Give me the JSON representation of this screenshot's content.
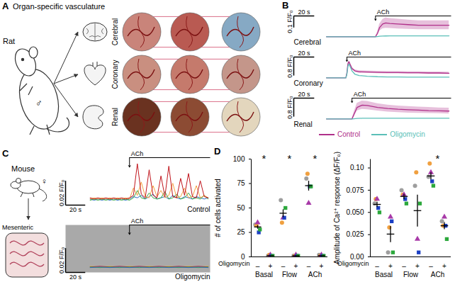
{
  "panels": {
    "A": {
      "letter": "A",
      "title": "Organ-specific vasculature",
      "animal": "Rat",
      "sex": "♂",
      "organs": [
        "Cerebral",
        "Coronary",
        "Renal"
      ]
    },
    "B": {
      "letter": "B"
    },
    "C": {
      "letter": "C",
      "animal": "Mouse",
      "sex": "♀",
      "organ": "Mesenteric"
    },
    "D": {
      "letter": "D"
    }
  },
  "chart_data": [
    {
      "type": "line",
      "title": "Cerebral",
      "tick_labels": false,
      "x": [
        0,
        10,
        20,
        30,
        40,
        46,
        48,
        50,
        52,
        55,
        58,
        62,
        70,
        80,
        90,
        100,
        110,
        120
      ],
      "xlim": [
        -32,
        122
      ],
      "ylim": [
        -0.01,
        0.18
      ],
      "annotations": [
        {
          "text": "ACh",
          "x": 48
        }
      ],
      "scale_bar": {
        "x": 20,
        "x_label": "20 s",
        "y": 0.1,
        "y_label": "0.1 F/F₀"
      },
      "series": [
        {
          "name": "Control",
          "color": "#b0308a",
          "values": [
            0,
            0,
            0,
            0,
            0,
            0,
            0,
            0.03,
            0.08,
            0.11,
            0.12,
            0.115,
            0.11,
            0.105,
            0.1,
            0.1,
            0.1,
            0.1
          ],
          "lower": [
            -0.003,
            -0.003,
            -0.003,
            -0.003,
            -0.003,
            -0.003,
            -0.003,
            0.015,
            0.05,
            0.07,
            0.075,
            0.072,
            0.068,
            0.065,
            0.062,
            0.062,
            0.062,
            0.062
          ],
          "upper": [
            0.003,
            0.003,
            0.003,
            0.003,
            0.003,
            0.003,
            0.003,
            0.045,
            0.11,
            0.15,
            0.165,
            0.158,
            0.152,
            0.145,
            0.138,
            0.138,
            0.138,
            0.138
          ]
        },
        {
          "name": "Oligomycin",
          "color": "#5bbfb8",
          "values": [
            0,
            0,
            0,
            0,
            0,
            0,
            0,
            0.002,
            0.004,
            0.006,
            0.007,
            0.008,
            0.008,
            0.008,
            0.008,
            0.008,
            0.008,
            0.008
          ]
        }
      ]
    },
    {
      "type": "line",
      "title": "Coronary",
      "tick_labels": false,
      "x": [
        0,
        5,
        10,
        15,
        19,
        20,
        21,
        22,
        23,
        25,
        28,
        32,
        40,
        50,
        60,
        70,
        80,
        90,
        100,
        110,
        120
      ],
      "xlim": [
        -32,
        122
      ],
      "ylim": [
        -0.05,
        0.9
      ],
      "annotations": [
        {
          "text": "ACh",
          "x": 20
        }
      ],
      "scale_bar": {
        "x": 20,
        "x_label": "20 s",
        "y": 0.8,
        "y_label": "0.8 F/F₀"
      },
      "series": [
        {
          "name": "Control",
          "color": "#b0308a",
          "values": [
            0,
            0,
            0,
            0,
            0,
            0.2,
            0.6,
            0.7,
            0.6,
            0.4,
            0.3,
            0.26,
            0.25,
            0.24,
            0.23,
            0.23,
            0.22,
            0.22,
            0.21,
            0.21,
            0.2
          ],
          "lower": [
            -0.01,
            -0.01,
            -0.01,
            -0.01,
            -0.01,
            0.15,
            0.55,
            0.65,
            0.55,
            0.35,
            0.25,
            0.21,
            0.2,
            0.19,
            0.18,
            0.18,
            0.17,
            0.17,
            0.16,
            0.16,
            0.15
          ],
          "upper": [
            0.01,
            0.01,
            0.01,
            0.01,
            0.01,
            0.25,
            0.65,
            0.75,
            0.65,
            0.45,
            0.35,
            0.31,
            0.3,
            0.29,
            0.28,
            0.28,
            0.27,
            0.27,
            0.26,
            0.26,
            0.25
          ]
        },
        {
          "name": "Oligomycin",
          "color": "#5bbfb8",
          "values": [
            0,
            0,
            0,
            0,
            0,
            0.15,
            0.5,
            0.6,
            0.5,
            0.3,
            0.15,
            0.1,
            0.07,
            0.05,
            0.04,
            0.04,
            0.03,
            0.03,
            0.03,
            0.03,
            0.03
          ]
        }
      ]
    },
    {
      "type": "line",
      "title": "Renal",
      "tick_labels": false,
      "legend": "bottom",
      "x": [
        0,
        10,
        20,
        24,
        25,
        27,
        30,
        35,
        40,
        50,
        60,
        70,
        80,
        90,
        100,
        110,
        120
      ],
      "xlim": [
        -32,
        122
      ],
      "ylim": [
        -0.05,
        0.9
      ],
      "annotations": [
        {
          "text": "ACh",
          "x": 25
        }
      ],
      "scale_bar": {
        "x": 20,
        "x_label": "20 s",
        "y": 0.8,
        "y_label": "0.8 F/F₀"
      },
      "series": [
        {
          "name": "Control",
          "color": "#b0308a",
          "values": [
            0,
            0,
            0,
            0,
            0,
            0.2,
            0.5,
            0.6,
            0.58,
            0.5,
            0.45,
            0.42,
            0.4,
            0.38,
            0.36,
            0.35,
            0.34
          ],
          "lower": [
            -0.01,
            -0.01,
            -0.01,
            -0.01,
            -0.01,
            0.1,
            0.35,
            0.42,
            0.4,
            0.35,
            0.3,
            0.28,
            0.26,
            0.25,
            0.24,
            0.23,
            0.22
          ],
          "upper": [
            0.01,
            0.01,
            0.01,
            0.01,
            0.01,
            0.3,
            0.68,
            0.78,
            0.76,
            0.66,
            0.6,
            0.56,
            0.54,
            0.52,
            0.5,
            0.48,
            0.47
          ]
        },
        {
          "name": "Oligomycin",
          "color": "#5bbfb8",
          "values": [
            0,
            0,
            0,
            0,
            0,
            0.01,
            0.02,
            0.03,
            0.03,
            0.03,
            0.03,
            0.03,
            0.03,
            0.03,
            0.03,
            0.03,
            0.03
          ]
        }
      ]
    },
    {
      "type": "line",
      "title": "Control",
      "tick_labels": false,
      "x": [
        0,
        4,
        8,
        12,
        16,
        20,
        24,
        28,
        32,
        36,
        40,
        44,
        48,
        52,
        56,
        60,
        64,
        68,
        72,
        76,
        80,
        84,
        88,
        92,
        96,
        100,
        104,
        108,
        112,
        116,
        120
      ],
      "xlim": [
        -25,
        122
      ],
      "ylim": [
        -0.004,
        0.035
      ],
      "annotations": [
        {
          "text": "ACh",
          "x": 40
        }
      ],
      "scale_bar": {
        "x": 20,
        "x_label": "20 s",
        "y": 0.02,
        "y_label": "0.02 F/F₀"
      },
      "series": [
        {
          "color": "#2f6fc0",
          "values": [
            0.001,
            0.0,
            0.001,
            0.0,
            0.001,
            0.0,
            0.001,
            0.0,
            0.001,
            0.0,
            0.001,
            0.003,
            0.002,
            0.004,
            0.001,
            0.003,
            0.005,
            0.001,
            0.002,
            0.003,
            0.001,
            0.004,
            0.002,
            0.001,
            0.003,
            0.002,
            0.001,
            0.003,
            0.002,
            0.001,
            0.002
          ]
        },
        {
          "color": "#3aa845",
          "values": [
            0.0,
            0.001,
            0.0,
            0.001,
            0.0,
            0.001,
            0.0,
            0.001,
            0.0,
            0.001,
            0.0,
            0.002,
            0.008,
            0.002,
            0.001,
            0.006,
            0.002,
            0.001,
            0.002,
            0.007,
            0.001,
            0.002,
            0.005,
            0.001,
            0.002,
            0.006,
            0.001,
            0.002,
            0.001,
            0.004,
            0.001
          ]
        },
        {
          "color": "#f5a142",
          "values": [
            0.001,
            0.002,
            0.001,
            0.002,
            0.001,
            0.002,
            0.001,
            0.002,
            0.001,
            0.002,
            0.001,
            0.01,
            0.004,
            0.015,
            0.003,
            0.002,
            0.012,
            0.003,
            0.008,
            0.002,
            0.004,
            0.014,
            0.002,
            0.003,
            0.01,
            0.002,
            0.003,
            0.012,
            0.002,
            0.004,
            0.002
          ]
        },
        {
          "color": "#c0141c",
          "values": [
            0.002,
            0.001,
            0.002,
            0.001,
            0.002,
            0.001,
            0.002,
            0.001,
            0.002,
            0.001,
            0.002,
            0.004,
            0.03,
            0.005,
            0.002,
            0.025,
            0.004,
            0.002,
            0.02,
            0.003,
            0.028,
            0.003,
            0.002,
            0.018,
            0.004,
            0.022,
            0.003,
            0.002,
            0.016,
            0.003,
            0.002
          ]
        }
      ]
    },
    {
      "type": "line",
      "title": "Oligomycin",
      "tick_labels": false,
      "x": [
        0,
        10,
        20,
        30,
        40,
        50,
        60,
        70,
        80,
        90,
        100,
        110,
        120
      ],
      "xlim": [
        -25,
        122
      ],
      "ylim": [
        -0.004,
        0.035
      ],
      "annotations": [
        {
          "text": "ACh",
          "x": 40
        }
      ],
      "scale_bar": {
        "x": 20,
        "x_label": "20 s",
        "y": 0.02,
        "y_label": "0.02 F/F₀"
      },
      "series": [
        {
          "color": "#f5a142",
          "values": [
            0.001,
            0.0005,
            0.001,
            0.0005,
            0.001,
            0.0005,
            0.001,
            0.0005,
            0.001,
            0.0005,
            0.001,
            0.0005,
            0.001
          ]
        },
        {
          "color": "#c0141c",
          "values": [
            0.0005,
            0.001,
            0.0005,
            0.001,
            0.0005,
            0.001,
            0.0005,
            0.001,
            0.0005,
            0.001,
            0.0005,
            0.001,
            0.0005
          ]
        },
        {
          "color": "#3aa845",
          "values": [
            0.0005,
            0,
            0.0005,
            0,
            0.0005,
            0,
            0.0005,
            0,
            0.0005,
            0,
            0.0005,
            0,
            0.0005
          ]
        },
        {
          "color": "#2f6fc0",
          "values": [
            0,
            0.0005,
            0,
            0.0005,
            0,
            0.0005,
            0,
            0.0005,
            0,
            0.0005,
            0,
            0.0005,
            0
          ]
        }
      ]
    },
    {
      "type": "scatter",
      "y_label": "# of cells activated",
      "x_label": "Oligomycin",
      "categories": [
        "–",
        "+",
        "–",
        "+",
        "–",
        "+"
      ],
      "groups": [
        "Basal",
        "Flow",
        "ACh"
      ],
      "ylim": [
        0,
        100
      ],
      "yticks": [
        0,
        25,
        50,
        75,
        100
      ],
      "series": [
        {
          "color": "#9e9e9e",
          "marker": "circle",
          "values": [
            33,
            1,
            58,
            1,
            80,
            2
          ]
        },
        {
          "color": "#f0a040",
          "marker": "circle",
          "values": [
            32,
            2,
            35,
            1,
            85,
            1
          ]
        },
        {
          "color": "#a83aa8",
          "marker": "triangle",
          "values": [
            35,
            2,
            40,
            2,
            55,
            2
          ]
        },
        {
          "color": "#1b3fc4",
          "marker": "square",
          "values": [
            25,
            1,
            40,
            1,
            72,
            1
          ]
        },
        {
          "color": "#2ca83c",
          "marker": "square",
          "values": [
            28,
            1,
            50,
            1,
            72,
            1
          ]
        }
      ],
      "mean": [
        30.6,
        1.4,
        44.6,
        1.2,
        72.8,
        1.4
      ],
      "error": [
        1.8,
        0.2,
        4.0,
        0.2,
        5.0,
        0.2
      ],
      "significance": [
        "*",
        "*",
        "*"
      ]
    },
    {
      "type": "scatter",
      "y_label": "Amplitude of Ca²⁺ response (ΔF/F₀)",
      "x_label": "Oligomycin",
      "categories": [
        "–",
        "+",
        "–",
        "+",
        "–",
        "+"
      ],
      "groups": [
        "Basal",
        "Flow",
        "ACh"
      ],
      "ylim": [
        0,
        0.11
      ],
      "yticks": [
        {
          "value": 0,
          "label": "0.00"
        },
        0.025,
        {
          "value": 0.05,
          "label": "0.050"
        },
        0.075,
        {
          "value": 0.1,
          "label": "0.10"
        }
      ],
      "series": [
        {
          "color": "#9e9e9e",
          "marker": "circle",
          "values": [
            0.06,
            0.005,
            0.075,
            0.08,
            0.09,
            0.04
          ]
        },
        {
          "color": "#f0a040",
          "marker": "circle",
          "values": [
            0.065,
            0.033,
            0.07,
            0.095,
            0.105,
            0.035
          ]
        },
        {
          "color": "#a83aa8",
          "marker": "triangle",
          "values": [
            0.065,
            0.045,
            0.07,
            0.02,
            0.095,
            0.045
          ]
        },
        {
          "color": "#1b3fc4",
          "marker": "square",
          "values": [
            0.055,
            0.04,
            0.065,
            0.005,
            0.085,
            0.035
          ]
        },
        {
          "color": "#2ca83c",
          "marker": "square",
          "values": [
            0.05,
            0.005,
            0.06,
            0.06,
            0.08,
            0.02
          ]
        }
      ],
      "mean": [
        0.059,
        0.0256,
        0.068,
        0.052,
        0.091,
        0.035
      ],
      "error": [
        0.003,
        0.009,
        0.003,
        0.018,
        0.004,
        0.004
      ],
      "significance": [
        null,
        null,
        "*"
      ]
    }
  ]
}
